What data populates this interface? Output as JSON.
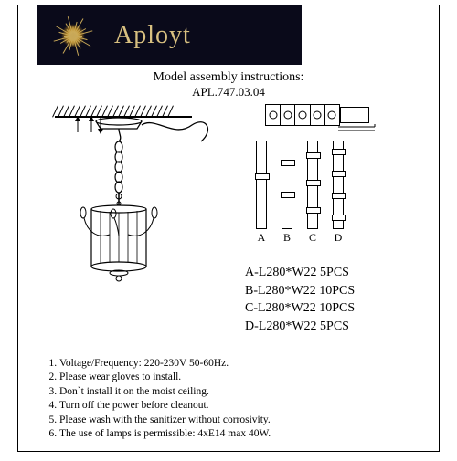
{
  "brand": "Aployt",
  "title": "Model assembly instructions:",
  "model": "APL.747.03.04",
  "rod_labels": [
    "A",
    "B",
    "C",
    "D"
  ],
  "parts": [
    "A-L280*W22   5PCS",
    "B-L280*W22  10PCS",
    "C-L280*W22  10PCS",
    "D-L280*W22   5PCS"
  ],
  "instructions": [
    "Voltage/Frequency: 220-230V 50-60Hz.",
    "Please wear gloves to install.",
    "Don`t install it on the moist ceiling.",
    "Turn off the power before cleanout.",
    "Please wash with the sanitizer without corrosivity.",
    "The use of lamps is permissible: 4xE14 max 40W."
  ],
  "colors": {
    "header_bg": "#0a0a1a",
    "brand_color": "#d8c080"
  }
}
